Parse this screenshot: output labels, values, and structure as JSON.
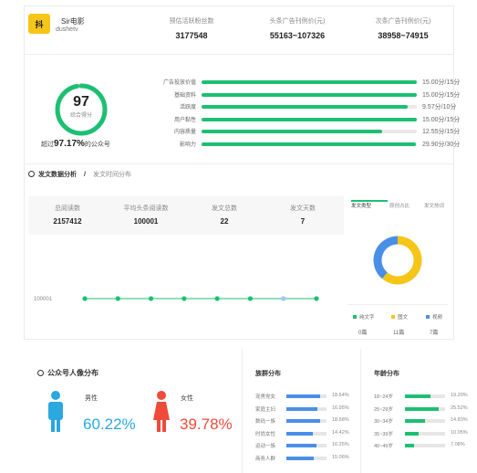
{
  "account": {
    "logo_text": "抖",
    "name": "Sir电影",
    "id": "dushetv"
  },
  "header_stats": [
    {
      "label": "预估活跃粉丝数",
      "value": "3177548"
    },
    {
      "label": "头条广告刊例价(元)",
      "value": "55163~107326"
    },
    {
      "label": "次条广告刊例价(元)",
      "value": "38958~74915"
    }
  ],
  "score": {
    "value": "97",
    "label": "综合得分",
    "rank_prefix": "超过",
    "rank_value": "97.17%",
    "rank_suffix": "的公众号"
  },
  "metrics": [
    {
      "label": "广告投放价值",
      "text": "15.00分/15分",
      "fraction": 1.0
    },
    {
      "label": "基础资料",
      "text": "15.00分/15分",
      "fraction": 1.0
    },
    {
      "label": "活跃度",
      "text": "9.57分/10分",
      "fraction": 0.957
    },
    {
      "label": "用户黏性",
      "text": "15.00分/15分",
      "fraction": 1.0
    },
    {
      "label": "内容质量",
      "text": "12.55分/15分",
      "fraction": 0.837
    },
    {
      "label": "影响力",
      "text": "29.90分/30分",
      "fraction": 0.997
    }
  ],
  "analysis": {
    "tab_active": "发文数据分析",
    "tab_separator": "/",
    "tab_inactive": "发文时间分布",
    "stats": [
      {
        "label": "总阅读数",
        "value": "2157412"
      },
      {
        "label": "平均头条阅读数",
        "value": "100001"
      },
      {
        "label": "发文总数",
        "value": "22"
      },
      {
        "label": "发文天数",
        "value": "7"
      }
    ],
    "line_label": "100001",
    "line_points": [
      100001,
      100001,
      100001,
      100001,
      100001,
      100001,
      100001,
      100001
    ]
  },
  "type_chart": {
    "tabs": [
      "发文类型",
      "原创占比",
      "发文热词"
    ],
    "legend": [
      {
        "name": "纯文字",
        "color": "#1dbf73",
        "count": "0篇"
      },
      {
        "name": "图文",
        "color": "#f5c518",
        "count": "11篇"
      },
      {
        "name": "视频",
        "color": "#4a8fe7",
        "count": "7篇"
      }
    ]
  },
  "chart_data": {
    "type": "pie",
    "categories": [
      "纯文字",
      "图文",
      "视频"
    ],
    "values": [
      0,
      11,
      7
    ]
  },
  "portrait": {
    "title": "公众号人像分布",
    "male_label": "男性",
    "male_pct": "60.22%",
    "female_label": "女性",
    "female_pct": "39.78%",
    "male_color": "#2aa8e0",
    "female_color": "#ee4b3b"
  },
  "tribe": {
    "title": "族群分布",
    "rows": [
      {
        "label": "宠男党女",
        "pct": "18.64%",
        "value": 18.64
      },
      {
        "label": "家庭主妇",
        "pct": "16.95%",
        "value": 16.95
      },
      {
        "label": "数码一族",
        "pct": "18.68%",
        "value": 18.68
      },
      {
        "label": "时尚女性",
        "pct": "14.42%",
        "value": 14.42
      },
      {
        "label": "运动一族",
        "pct": "16.25%",
        "value": 16.25
      },
      {
        "label": "商务人群",
        "pct": "15.06%",
        "value": 15.06
      }
    ]
  },
  "age": {
    "title": "年龄分布",
    "rows": [
      {
        "label": "18~24岁",
        "pct": "19.20%",
        "value": 19.2
      },
      {
        "label": "25~29岁",
        "pct": "25.52%",
        "value": 25.52
      },
      {
        "label": "30~34岁",
        "pct": "14.83%",
        "value": 14.83
      },
      {
        "label": "35~39岁",
        "pct": "10.05%",
        "value": 10.05
      },
      {
        "label": "40~49岁",
        "pct": "7.08%",
        "value": 7.08
      }
    ]
  }
}
